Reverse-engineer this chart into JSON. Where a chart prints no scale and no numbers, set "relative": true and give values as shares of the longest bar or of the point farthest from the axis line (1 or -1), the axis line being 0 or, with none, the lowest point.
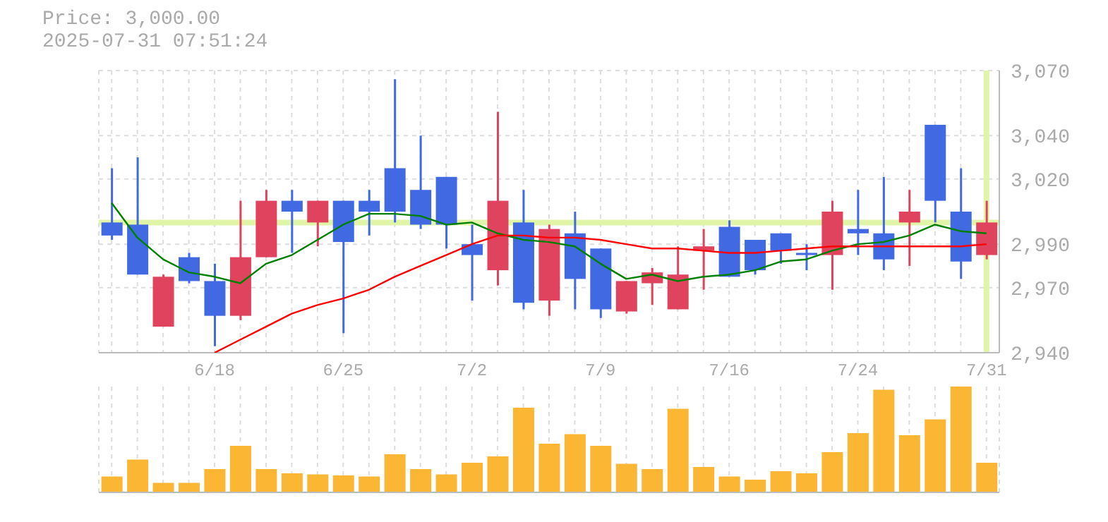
{
  "chart_data": [
    {
      "type": "candlestick",
      "title": "Price: 3,000.00",
      "subtitle": "2025-07-31 07:51:24",
      "categories": [
        null,
        null,
        null,
        null,
        "6/18",
        null,
        null,
        null,
        null,
        "6/25",
        null,
        null,
        null,
        null,
        "7/2",
        null,
        null,
        null,
        null,
        "7/9",
        null,
        null,
        null,
        null,
        "7/16",
        null,
        null,
        null,
        null,
        "7/24",
        null,
        null,
        null,
        null,
        "7/31"
      ],
      "ohlc": [
        [
          3000,
          3025,
          2992,
          2994
        ],
        [
          2999,
          3030,
          2976,
          2976
        ],
        [
          2952,
          2976,
          2952,
          2975
        ],
        [
          2984,
          2986,
          2972,
          2973
        ],
        [
          2973,
          2981,
          2943,
          2957
        ],
        [
          2957,
          3010,
          2955,
          2984
        ],
        [
          2984,
          3015,
          2984,
          3010
        ],
        [
          3010,
          3015,
          2986,
          3005
        ],
        [
          3000,
          3010,
          2989,
          3010
        ],
        [
          3010,
          3010,
          2949,
          2991
        ],
        [
          3010,
          3015,
          2994,
          3005
        ],
        [
          3025,
          3066,
          3000,
          3005
        ],
        [
          3015,
          3040,
          2997,
          2999
        ],
        [
          3021,
          3021,
          2988,
          2999
        ],
        [
          2990,
          2999,
          2964,
          2985
        ],
        [
          2978,
          3051,
          2971,
          3010
        ],
        [
          3000,
          3015,
          2960,
          2963
        ],
        [
          2964,
          2999,
          2957,
          2997
        ],
        [
          2995,
          3005,
          2960,
          2974
        ],
        [
          2988,
          2988,
          2956,
          2960
        ],
        [
          2959,
          2973,
          2958,
          2973
        ],
        [
          2972,
          2979,
          2962,
          2977
        ],
        [
          2960,
          2989,
          2960,
          2976
        ],
        [
          2987,
          2997,
          2969,
          2989
        ],
        [
          2998,
          3001,
          2975,
          2975
        ],
        [
          2992,
          2992,
          2976,
          2978
        ],
        [
          2995,
          2995,
          2981,
          2987
        ],
        [
          2986,
          2990,
          2978,
          2985
        ],
        [
          2985,
          3010,
          2969,
          3005
        ],
        [
          2997,
          3015,
          2985,
          2995
        ],
        [
          2995,
          3021,
          2978,
          2983
        ],
        [
          3000,
          3015,
          2980,
          3005
        ],
        [
          3045,
          3045,
          3000,
          3010
        ],
        [
          3005,
          3025,
          2974,
          2982
        ],
        [
          2985,
          3010,
          2983,
          3000
        ]
      ],
      "colors": [
        "#4169e1",
        "#4169e1",
        "#e0435e",
        "#4169e1",
        "#4169e1",
        "#e0435e",
        "#e0435e",
        "#4169e1",
        "#e0435e",
        "#4169e1",
        "#4169e1",
        "#4169e1",
        "#4169e1",
        "#4169e1",
        "#4169e1",
        "#e0435e",
        "#4169e1",
        "#e0435e",
        "#4169e1",
        "#4169e1",
        "#e0435e",
        "#e0435e",
        "#e0435e",
        "#e0435e",
        "#4169e1",
        "#4169e1",
        "#4169e1",
        "#4169e1",
        "#e0435e",
        "#4169e1",
        "#4169e1",
        "#e0435e",
        "#4169e1",
        "#4169e1",
        "#e0435e"
      ],
      "series": [
        {
          "type": "line",
          "color": "#008000",
          "values": [
            3009,
            2993,
            2983,
            2977,
            2975,
            2972,
            2981,
            2985,
            2992,
            2999,
            3004,
            3004,
            3003,
            2999,
            3000,
            2995,
            2992,
            2991,
            2989,
            2981,
            2974,
            2976,
            2973,
            2975,
            2976,
            2978,
            2982,
            2983,
            2987,
            2990,
            2991,
            2994,
            2999,
            2996,
            2995
          ]
        },
        {
          "type": "line",
          "color": "#ff0000",
          "values": [
            null,
            null,
            null,
            null,
            2940,
            2946,
            2952,
            2958,
            2962,
            2965,
            2969,
            2975,
            2980,
            2985,
            2990,
            2994,
            2994,
            2993,
            2993,
            2992,
            2990,
            2988,
            2988,
            2987,
            2986,
            2986,
            2987,
            2988,
            2989,
            2989,
            2989,
            2989,
            2989,
            2989,
            2990
          ]
        }
      ],
      "ylim": [
        2940,
        3070
      ],
      "yticks": [
        {
          "value": 2940,
          "label": "2,940"
        },
        {
          "value": 2970,
          "label": "2,970"
        },
        {
          "value": 2990,
          "label": "2,990"
        },
        {
          "value": 3020,
          "label": "3,020"
        },
        {
          "value": 3040,
          "label": "3,040"
        },
        {
          "value": 3070,
          "label": "3,070"
        }
      ],
      "grid": true,
      "tick_labels": "y",
      "ref_lines": [
        {
          "axis": "y",
          "value": 3000,
          "color": "#e0f5a8"
        },
        {
          "axis": "x",
          "value": "7/31",
          "color": "#e0f5a8"
        }
      ]
    },
    {
      "type": "bar",
      "relative": true,
      "grid": "x",
      "color": "#fbb634",
      "categories": [
        null,
        null,
        null,
        null,
        "6/18",
        null,
        null,
        null,
        null,
        "6/25",
        null,
        null,
        null,
        null,
        "7/2",
        null,
        null,
        null,
        null,
        "7/9",
        null,
        null,
        null,
        null,
        "7/16",
        null,
        null,
        null,
        null,
        "7/24",
        null,
        null,
        null,
        null,
        "7/31"
      ],
      "values": [
        0.15,
        0.31,
        0.09,
        0.09,
        0.22,
        0.44,
        0.22,
        0.18,
        0.17,
        0.16,
        0.15,
        0.36,
        0.22,
        0.17,
        0.28,
        0.34,
        0.8,
        0.46,
        0.55,
        0.44,
        0.27,
        0.22,
        0.79,
        0.24,
        0.15,
        0.12,
        0.2,
        0.18,
        0.38,
        0.56,
        0.97,
        0.54,
        0.69,
        1,
        0.28
      ]
    }
  ]
}
